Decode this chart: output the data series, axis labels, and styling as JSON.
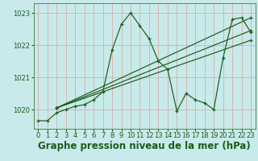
{
  "title": "Graphe pression niveau de la mer (hPa)",
  "bg_color": "#c8eaea",
  "grid_color": "#ddaaaa",
  "line_color": "#1a5c1a",
  "xlim": [
    -0.5,
    23.5
  ],
  "ylim": [
    1019.4,
    1023.3
  ],
  "yticks": [
    1020,
    1021,
    1022,
    1023
  ],
  "xticks": [
    0,
    1,
    2,
    3,
    4,
    5,
    6,
    7,
    8,
    9,
    10,
    11,
    12,
    13,
    14,
    15,
    16,
    17,
    18,
    19,
    20,
    21,
    22,
    23
  ],
  "series_main": {
    "x": [
      0,
      1,
      2,
      3,
      4,
      5,
      6,
      7,
      8,
      9,
      10,
      11,
      12,
      13,
      14,
      15,
      16,
      17,
      18,
      19,
      20,
      21,
      22,
      23
    ],
    "y": [
      1019.65,
      1019.65,
      1019.9,
      1020.0,
      1020.1,
      1020.15,
      1020.3,
      1020.55,
      1021.85,
      1022.65,
      1023.0,
      1022.6,
      1022.2,
      1021.5,
      1021.25,
      1019.95,
      1020.5,
      1020.3,
      1020.2,
      1020.0,
      1021.6,
      1022.8,
      1022.85,
      1022.4
    ]
  },
  "diagonal_lines": [
    {
      "x": [
        2,
        23
      ],
      "y": [
        1020.05,
        1022.85
      ]
    },
    {
      "x": [
        2,
        23
      ],
      "y": [
        1020.05,
        1022.45
      ]
    },
    {
      "x": [
        2,
        23
      ],
      "y": [
        1020.05,
        1022.15
      ]
    }
  ],
  "title_fontsize": 8.5,
  "tick_fontsize": 6,
  "title_color": "#1a5c1a",
  "tick_color": "#1a5c1a",
  "spine_color": "#558855"
}
